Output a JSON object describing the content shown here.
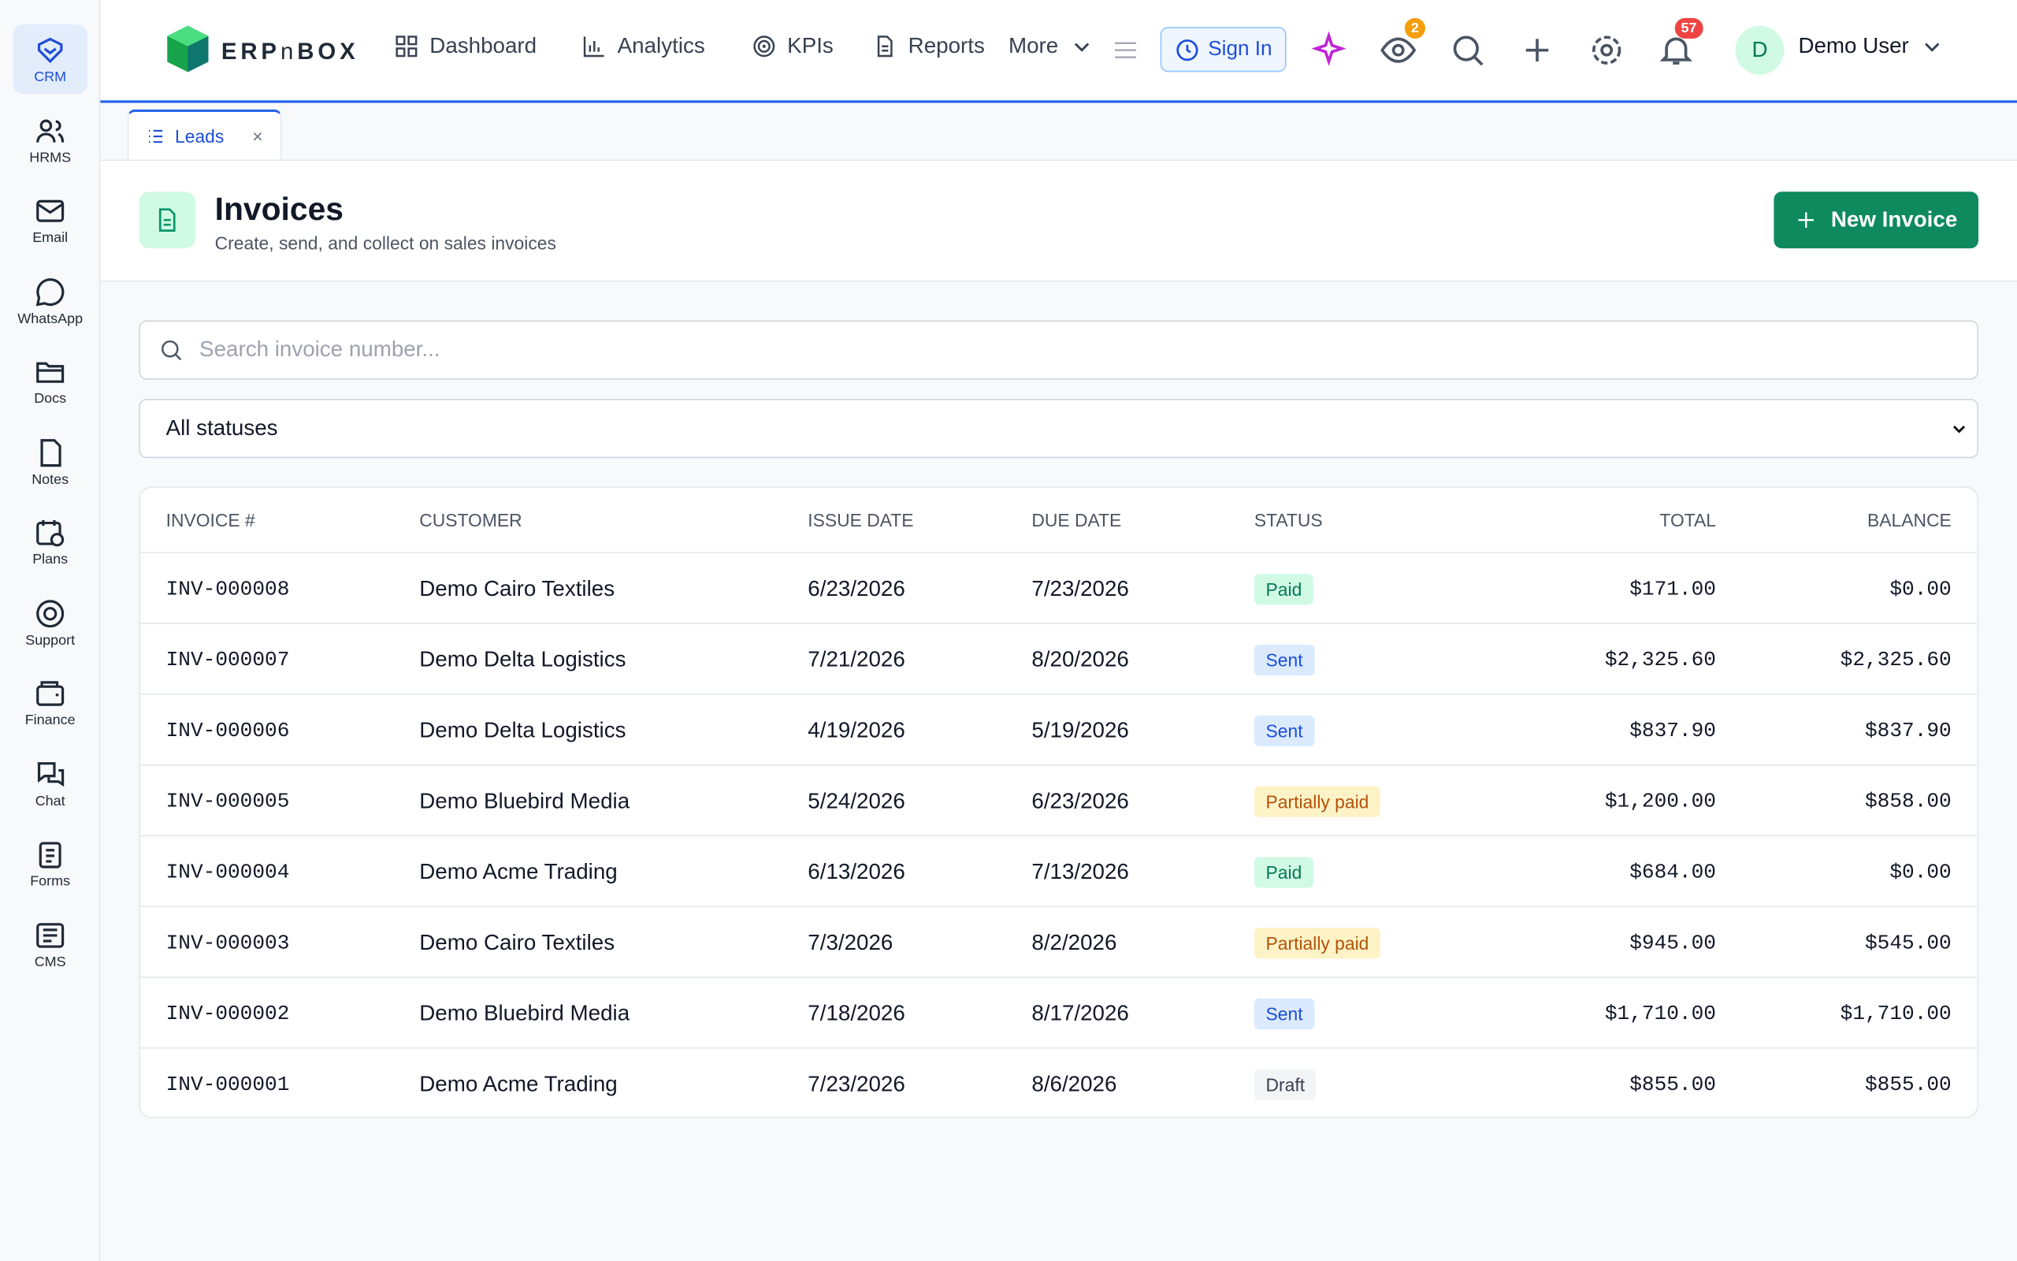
{
  "sidebar": [
    {
      "label": "CRM"
    },
    {
      "label": "HRMS"
    },
    {
      "label": "Email"
    },
    {
      "label": "WhatsApp"
    },
    {
      "label": "Docs"
    },
    {
      "label": "Notes"
    },
    {
      "label": "Plans"
    },
    {
      "label": "Support"
    },
    {
      "label": "Finance"
    },
    {
      "label": "Chat"
    },
    {
      "label": "Forms"
    },
    {
      "label": "CMS"
    }
  ],
  "topbar": {
    "nav": [
      "Dashboard",
      "Analytics",
      "KPIs",
      "Reports"
    ],
    "more": "More",
    "sign_in": "Sign In",
    "watch_badge": 2,
    "notification_badge": 57,
    "avatar": "D",
    "user": "Demo User"
  },
  "tabs": [
    {
      "label": "Leads"
    }
  ],
  "header": {
    "title": "Invoices",
    "subtitle": "Create, send, and collect on sales invoices",
    "button": "New Invoice"
  },
  "filters": {
    "search_placeholder": "Search invoice number...",
    "status": "All statuses"
  },
  "table": {
    "columns": [
      "INVOICE #",
      "CUSTOMER",
      "ISSUE DATE",
      "DUE DATE",
      "STATUS",
      "TOTAL",
      "BALANCE"
    ],
    "rows": [
      [
        "INV-000008",
        "Demo Cairo Textiles",
        "6/23/2026",
        "7/23/2026",
        "Paid",
        "$171.00",
        "$0.00"
      ],
      [
        "INV-000007",
        "Demo Delta Logistics",
        "7/21/2026",
        "8/20/2026",
        "Sent",
        "$2,325.60",
        "$2,325.60"
      ],
      [
        "INV-000006",
        "Demo Delta Logistics",
        "4/19/2026",
        "5/19/2026",
        "Sent",
        "$837.90",
        "$837.90"
      ],
      [
        "INV-000005",
        "Demo Bluebird Media",
        "5/24/2026",
        "6/23/2026",
        "Partially paid",
        "$1,200.00",
        "$858.00"
      ],
      [
        "INV-000004",
        "Demo Acme Trading",
        "6/13/2026",
        "7/13/2026",
        "Paid",
        "$684.00",
        "$0.00"
      ],
      [
        "INV-000003",
        "Demo Cairo Textiles",
        "7/3/2026",
        "8/2/2026",
        "Partially paid",
        "$945.00",
        "$545.00"
      ],
      [
        "INV-000002",
        "Demo Bluebird Media",
        "7/18/2026",
        "8/17/2026",
        "Sent",
        "$1,710.00",
        "$1,710.00"
      ],
      [
        "INV-000001",
        "Demo Acme Trading",
        "7/23/2026",
        "8/6/2026",
        "Draft",
        "$855.00",
        "$855.00"
      ]
    ]
  }
}
